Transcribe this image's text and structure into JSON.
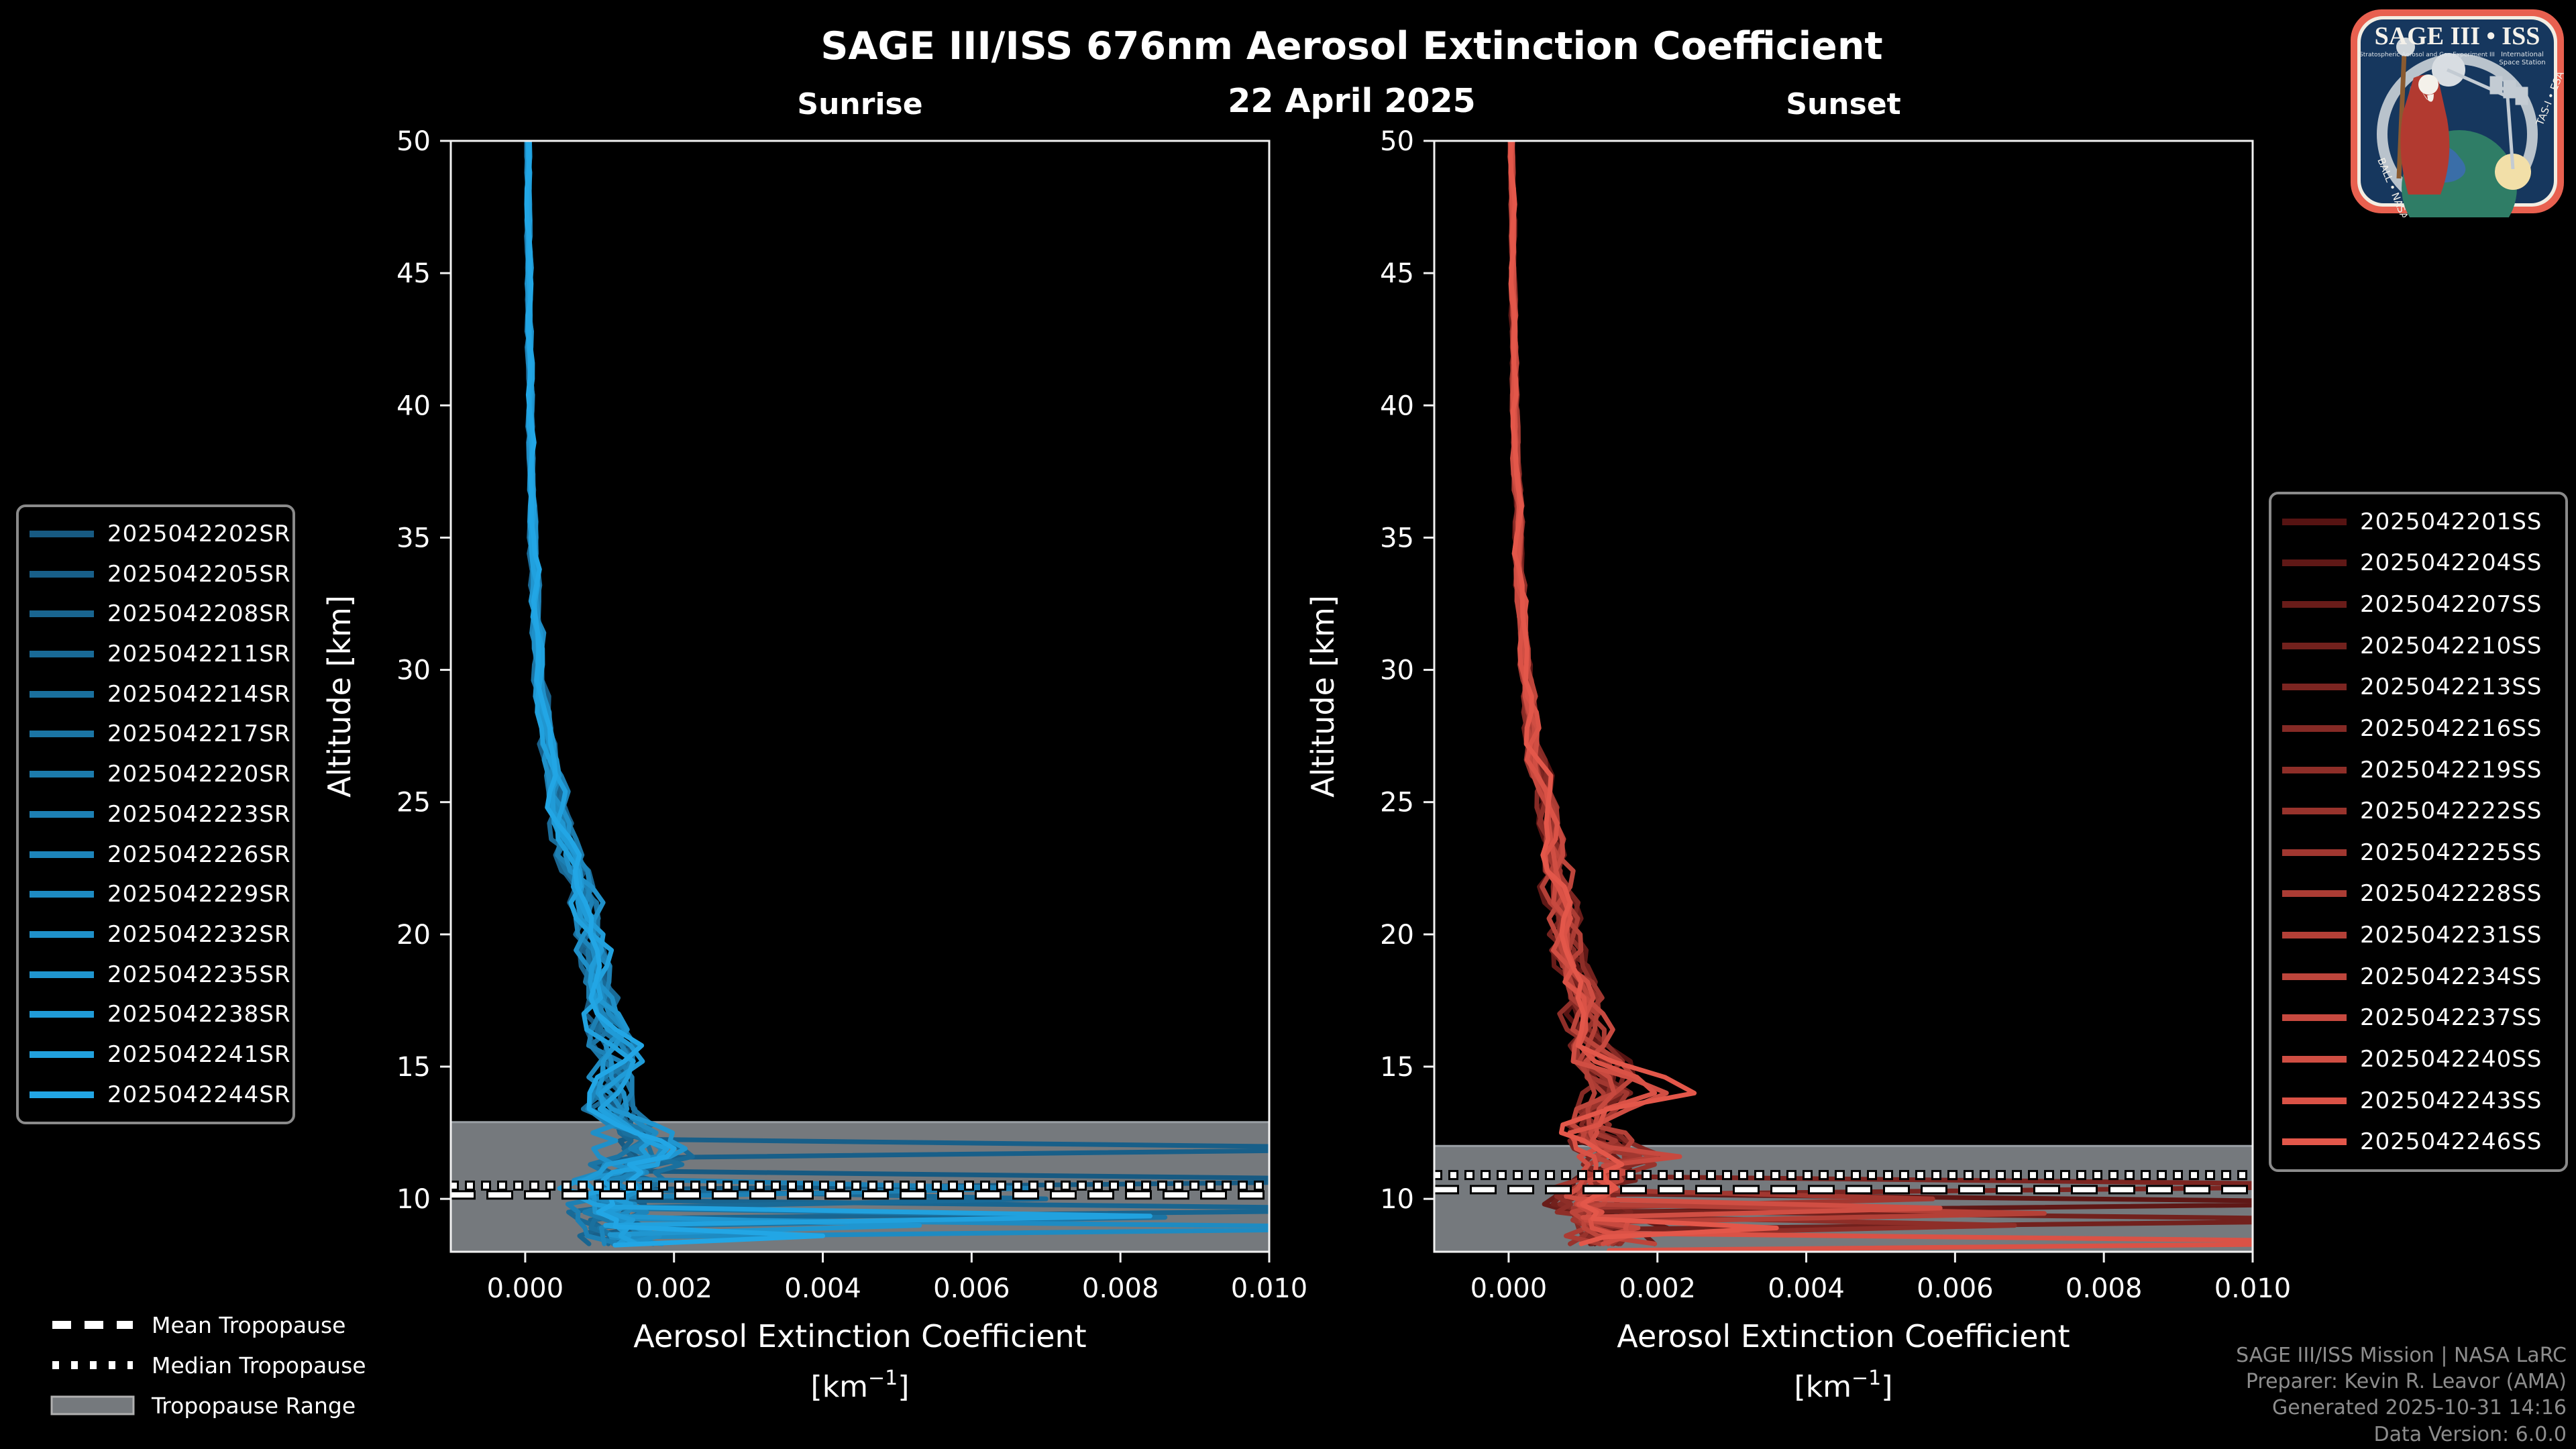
{
  "header": {
    "title": "SAGE III/ISS 676nm Aerosol Extinction Coefficient",
    "date": "22 April 2025",
    "left_panel": "Sunrise",
    "right_panel": "Sunset"
  },
  "axes": {
    "ylabel": "Altitude [km]",
    "xlabel": "Aerosol Extinction Coefficient",
    "xlabel_unit_prefix": "[km",
    "xlabel_unit_sup": "−1",
    "xlabel_unit_suffix": "]",
    "xlim": [
      -0.001,
      0.01
    ],
    "ylim": [
      8,
      50
    ],
    "x_ticks": [
      0.0,
      0.002,
      0.004,
      0.006,
      0.008,
      0.01
    ],
    "x_tick_labels": [
      "0.000",
      "0.002",
      "0.004",
      "0.006",
      "0.008",
      "0.010"
    ],
    "y_ticks": [
      50,
      45,
      40,
      35,
      30,
      25,
      20,
      15,
      10
    ],
    "y_tick_labels": [
      "50",
      "45",
      "40",
      "35",
      "30",
      "25",
      "20",
      "15",
      "10"
    ]
  },
  "chart_data": [
    {
      "panel": "Sunrise",
      "type": "line",
      "xlabel": "Aerosol Extinction Coefficient [km^-1]",
      "ylabel": "Altitude [km]",
      "xlim": [
        -0.001,
        0.01
      ],
      "ylim": [
        8,
        50
      ],
      "grid": false,
      "tropopause": {
        "band_top_km": 12.9,
        "band_bottom_km": 8.0,
        "mean_km": 10.15,
        "median_km": 10.5
      },
      "profile_template": [
        [
          50,
          4e-05
        ],
        [
          45,
          5e-05
        ],
        [
          40,
          7e-05
        ],
        [
          36,
          0.0001
        ],
        [
          32,
          0.00015
        ],
        [
          29,
          0.00022
        ],
        [
          27,
          0.0003
        ],
        [
          25,
          0.00045
        ],
        [
          23.5,
          0.00055
        ],
        [
          22,
          0.0007
        ],
        [
          20.5,
          0.00085
        ],
        [
          19,
          0.00095
        ],
        [
          17.5,
          0.00105
        ],
        [
          16,
          0.00115
        ],
        [
          15,
          0.0012
        ],
        [
          14,
          0.00115
        ],
        [
          13.2,
          0.0012
        ],
        [
          12.6,
          0.00145
        ],
        [
          12,
          0.0017
        ],
        [
          11.4,
          0.00155
        ],
        [
          10.8,
          0.0013
        ],
        [
          10.2,
          0.00115
        ],
        [
          9.6,
          0.0011
        ],
        [
          9,
          0.0012
        ],
        [
          8.2,
          0.00135
        ]
      ],
      "noise_profile": [
        [
          50,
          2e-05
        ],
        [
          40,
          3e-05
        ],
        [
          30,
          6e-05
        ],
        [
          25,
          0.0001
        ],
        [
          20,
          0.00016
        ],
        [
          16,
          0.0002
        ],
        [
          13,
          0.00028
        ],
        [
          11,
          0.00045
        ],
        [
          8.2,
          0.0005
        ]
      ],
      "series": [
        {
          "name": "2025042202SR",
          "color": "#175a82",
          "seed": 111,
          "exc": [
            [
              10.7,
              0.0128
            ]
          ]
        },
        {
          "name": "2025042205SR",
          "color": "#185f89",
          "seed": 124,
          "exc": [
            [
              11.9,
              0.0125
            ]
          ]
        },
        {
          "name": "2025042208SR",
          "color": "#196590",
          "seed": 137,
          "exc": [
            [
              9.6,
              0.0126
            ]
          ]
        },
        {
          "name": "2025042211SR",
          "color": "#196a97",
          "seed": 150,
          "exc": [
            [
              10.0,
              0.007
            ]
          ]
        },
        {
          "name": "2025042214SR",
          "color": "#1a709e",
          "seed": 163,
          "exc": []
        },
        {
          "name": "2025042217SR",
          "color": "#1b75a5",
          "seed": 176,
          "exc": [
            [
              9.3,
              0.0086
            ]
          ]
        },
        {
          "name": "2025042220SR",
          "color": "#1c7bac",
          "seed": 189,
          "exc": []
        },
        {
          "name": "2025042223SR",
          "color": "#1d80b4",
          "seed": 202,
          "exc": [
            [
              10.4,
              0.0068
            ]
          ]
        },
        {
          "name": "2025042226SR",
          "color": "#1d85bb",
          "seed": 215,
          "exc": []
        },
        {
          "name": "2025042229SR",
          "color": "#1e8bc2",
          "seed": 228,
          "exc": [
            [
              8.9,
              0.0125
            ]
          ]
        },
        {
          "name": "2025042232SR",
          "color": "#1f90c9",
          "seed": 241,
          "exc": []
        },
        {
          "name": "2025042235SR",
          "color": "#2096d0",
          "seed": 254,
          "exc": [
            [
              9.0,
              0.0053
            ]
          ]
        },
        {
          "name": "2025042238SR",
          "color": "#209bd7",
          "seed": 267,
          "exc": []
        },
        {
          "name": "2025042241SR",
          "color": "#21a1de",
          "seed": 280,
          "exc": [
            [
              9.35,
              0.0084
            ]
          ]
        },
        {
          "name": "2025042244SR",
          "color": "#22a6e5",
          "seed": 293,
          "exc": [
            [
              8.6,
              0.004
            ]
          ]
        }
      ]
    },
    {
      "panel": "Sunset",
      "type": "line",
      "xlabel": "Aerosol Extinction Coefficient [km^-1]",
      "ylabel": "Altitude [km]",
      "xlim": [
        -0.001,
        0.01
      ],
      "ylim": [
        8,
        50
      ],
      "grid": false,
      "tropopause": {
        "band_top_km": 12.0,
        "band_bottom_km": 8.0,
        "mean_km": 10.35,
        "median_km": 10.9
      },
      "profile_template": [
        [
          50,
          4e-05
        ],
        [
          45,
          6e-05
        ],
        [
          40,
          8e-05
        ],
        [
          36,
          0.00012
        ],
        [
          32,
          0.00018
        ],
        [
          29,
          0.00026
        ],
        [
          27,
          0.00035
        ],
        [
          25,
          0.0005
        ],
        [
          23.5,
          0.0006
        ],
        [
          22,
          0.00065
        ],
        [
          20.5,
          0.00075
        ],
        [
          19,
          0.00085
        ],
        [
          17.5,
          0.00095
        ],
        [
          16,
          0.0011
        ],
        [
          15,
          0.00125
        ],
        [
          14.2,
          0.0014
        ],
        [
          13.4,
          0.00115
        ],
        [
          12.8,
          0.00105
        ],
        [
          12.2,
          0.00125
        ],
        [
          11.6,
          0.0015
        ],
        [
          11,
          0.00135
        ],
        [
          10.4,
          0.001
        ],
        [
          9.8,
          0.0009
        ],
        [
          9.2,
          0.00115
        ],
        [
          8.6,
          0.0014
        ],
        [
          8.2,
          0.0015
        ]
      ],
      "noise_profile": [
        [
          50,
          2e-05
        ],
        [
          40,
          3e-05
        ],
        [
          30,
          6e-05
        ],
        [
          25,
          0.0001
        ],
        [
          20,
          0.00016
        ],
        [
          16,
          0.0002
        ],
        [
          13,
          0.00028
        ],
        [
          11,
          0.00045
        ],
        [
          8.2,
          0.0005
        ]
      ],
      "series": [
        {
          "name": "2025042201SS",
          "color": "#561312",
          "seed": 511,
          "exc": []
        },
        {
          "name": "2025042204SS",
          "color": "#5f1816",
          "seed": 528,
          "exc": [
            [
              9.85,
              0.0128
            ]
          ]
        },
        {
          "name": "2025042207SS",
          "color": "#691c19",
          "seed": 545,
          "exc": []
        },
        {
          "name": "2025042210SS",
          "color": "#72211d",
          "seed": 562,
          "exc": [
            [
              9.2,
              0.0125
            ]
          ]
        },
        {
          "name": "2025042213SS",
          "color": "#7c2521",
          "seed": 579,
          "exc": [
            [
              10.5,
              0.0127
            ]
          ]
        },
        {
          "name": "2025042216SS",
          "color": "#852a25",
          "seed": 596,
          "exc": []
        },
        {
          "name": "2025042219SS",
          "color": "#8e2e28",
          "seed": 613,
          "exc": [
            [
              9.0,
              0.0068
            ]
          ]
        },
        {
          "name": "2025042222SS",
          "color": "#98332c",
          "seed": 630,
          "exc": []
        },
        {
          "name": "2025042225SS",
          "color": "#a13730",
          "seed": 647,
          "exc": [
            [
              10.0,
              0.0057
            ]
          ]
        },
        {
          "name": "2025042228SS",
          "color": "#ab3c34",
          "seed": 664,
          "exc": []
        },
        {
          "name": "2025042231SS",
          "color": "#b44037",
          "seed": 681,
          "exc": [
            [
              9.45,
              0.0072
            ]
          ]
        },
        {
          "name": "2025042234SS",
          "color": "#bd453b",
          "seed": 698,
          "exc": []
        },
        {
          "name": "2025042237SS",
          "color": "#c7493f",
          "seed": 715,
          "exc": [
            [
              11.6,
              0.0023
            ]
          ],
          "bump": 0.3
        },
        {
          "name": "2025042240SS",
          "color": "#d04e43",
          "seed": 732,
          "exc": [
            [
              9.65,
              0.0058
            ]
          ],
          "bump": 0.35
        },
        {
          "name": "2025042243SS",
          "color": "#da5246",
          "seed": 749,
          "exc": [
            [
              8.35,
              0.0128
            ]
          ],
          "bump": 0.4
        },
        {
          "name": "2025042246SS",
          "color": "#e3574a",
          "seed": 766,
          "exc": [
            [
              8.9,
              0.0036
            ]
          ],
          "bump": 0.5
        }
      ]
    }
  ],
  "tropopause_legend": {
    "mean": "Mean Tropopause",
    "median": "Median Tropopause",
    "range": "Tropopause Range"
  },
  "footer": {
    "lines": [
      "SAGE III/ISS Mission | NASA LaRC",
      "Preparer: Kevin R. Leavor (AMA)",
      "Generated 2025-10-31 14:16",
      "Data Version: 6.0.0"
    ]
  },
  "logo": {
    "title": "SAGE III • ISS",
    "subtitle_left": "Stratospheric Aerosol and Gas Experiment III",
    "subtitle_right_1": "International",
    "subtitle_right_2": "Space Station",
    "ring_text_left": "BALL • NASA",
    "ring_text_right": "TAS-I • ESA"
  },
  "colors": {
    "background": "#000000",
    "text": "#ffffff",
    "footer_text": "#8d8d8d",
    "spine": "#f2f2f2",
    "band": "#75797d",
    "band_edge": "#9aa0a5",
    "trop_line": "#ffffff",
    "trop_casing": "#000000",
    "legend_border": "#8a8a8a",
    "logo_border": "#e8604f",
    "logo_bg": "#16375e"
  }
}
